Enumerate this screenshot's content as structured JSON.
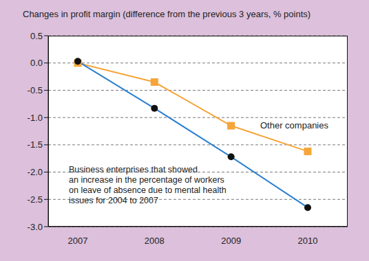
{
  "chart_data": {
    "type": "line",
    "title": "Changes in profit margin (difference from the previous 3 years, % points)",
    "categories": [
      "2007",
      "2008",
      "2009",
      "2010"
    ],
    "series": [
      {
        "name": "Other companies",
        "color": "#f5a53a",
        "marker": "square",
        "values": [
          0.0,
          -0.35,
          -1.15,
          -1.62
        ]
      },
      {
        "name": "Business enterprises that showed\nan increase in the percentage of workers\non leave of absence due to mental health\nissues for 2004 to 2007",
        "color": "#2a7fd0",
        "marker": "circle",
        "values": [
          0.03,
          -0.83,
          -1.72,
          -2.65
        ]
      }
    ],
    "ylim": [
      -3.0,
      0.5
    ],
    "yticks": [
      0.5,
      {
        "value": 0,
        "label": "0.0"
      },
      -0.5,
      {
        "value": -1,
        "label": "-1.0"
      },
      -1.5,
      {
        "value": -2,
        "label": "-2.0"
      },
      -2.5,
      {
        "value": -3,
        "label": "-3.0"
      }
    ],
    "grid": true
  }
}
